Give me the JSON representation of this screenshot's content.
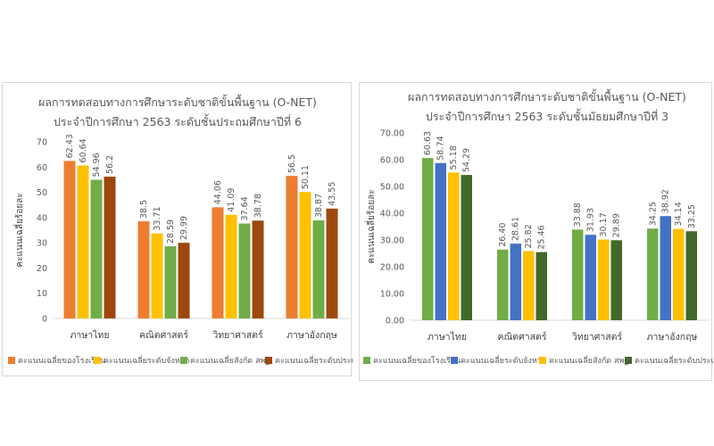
{
  "chart_data": [
    {
      "type": "bar",
      "title": "ผลการทดสอบทางการศึกษาระดับชาติขั้นพื้นฐาน (O-NET)",
      "subtitle": "ประจำปีการศึกษา 2563 ระดับชั้นประถมศึกษาปีที่ 6",
      "xlabel": "",
      "ylabel": "คะแนนเฉลี่ยร้อยละ",
      "ylim": [
        0,
        70
      ],
      "ytick_step": 10,
      "ytick_labels": [
        "0",
        "10",
        "20",
        "30",
        "40",
        "50",
        "60",
        "70"
      ],
      "categories": [
        "ภาษาไทย",
        "คณิตศาสตร์",
        "วิทยาศาสตร์",
        "ภาษาอังกฤษ"
      ],
      "series": [
        {
          "name": "คะแนนเฉลี่ยของโรงเรียน",
          "color": "#ED7D31",
          "values": [
            62.43,
            38.5,
            44.06,
            56.5
          ],
          "labels": [
            "62.43",
            "38.5",
            "44.06",
            "56.5"
          ]
        },
        {
          "name": "คะแนนเฉลี่ยระดับจังหวัด",
          "color": "#FFC000",
          "values": [
            60.64,
            33.71,
            41.09,
            50.11
          ],
          "labels": [
            "60.64",
            "33.71",
            "41.09",
            "50.11"
          ]
        },
        {
          "name": "คะแนนเฉลี่ยสังกัด สพฐ.",
          "color": "#70AD47",
          "values": [
            54.96,
            28.59,
            37.64,
            38.87
          ],
          "labels": [
            "54.96",
            "28.59",
            "37.64",
            "38.87"
          ]
        },
        {
          "name": "คะแนนเฉลี่ยระดับประเทศ",
          "color": "#9E480E",
          "values": [
            56.2,
            29.99,
            38.78,
            43.55
          ],
          "labels": [
            "56.2",
            "29.99",
            "38.78",
            "43.55"
          ]
        }
      ],
      "grid": false,
      "legend_position": "bottom"
    },
    {
      "type": "bar",
      "title": "ผลการทดสอบทางการศึกษาระดับชาติขั้นพื้นฐาน (O-NET)",
      "subtitle": "ประจำปีการศึกษา 2563 ระดับชั้นมัธยมศึกษาปีที่ 3",
      "xlabel": "",
      "ylabel": "คะแนนเฉลี่ยร้อยละ",
      "ylim": [
        0,
        70
      ],
      "ytick_step": 10,
      "ytick_labels": [
        "0.00",
        "10.00",
        "20.00",
        "30.00",
        "40.00",
        "50.00",
        "60.00",
        "70.00"
      ],
      "categories": [
        "ภาษาไทย",
        "คณิตศาสตร์",
        "วิทยาศาสตร์",
        "ภาษาอังกฤษ"
      ],
      "series": [
        {
          "name": "คะแนนเฉลี่ยของโรงเรียน",
          "color": "#70AD47",
          "values": [
            60.63,
            26.4,
            33.88,
            34.25
          ],
          "labels": [
            "60.63",
            "26.40",
            "33.88",
            "34.25"
          ]
        },
        {
          "name": "คะแนนเฉลี่ยระดับจังหวัด",
          "color": "#4472C4",
          "values": [
            58.74,
            28.61,
            31.93,
            38.92
          ],
          "labels": [
            "58.74",
            "28.61",
            "31.93",
            "38.92"
          ]
        },
        {
          "name": "คะแนนเฉลี่ยสังกัด สพฐ.",
          "color": "#FFC000",
          "values": [
            55.18,
            25.82,
            30.17,
            34.14
          ],
          "labels": [
            "55.18",
            "25.82",
            "30.17",
            "34.14"
          ]
        },
        {
          "name": "คะแนนเฉลี่ยระดับประเทศ",
          "color": "#43682B",
          "values": [
            54.29,
            25.46,
            29.89,
            33.25
          ],
          "labels": [
            "54.29",
            "25.46",
            "29.89",
            "33.25"
          ]
        }
      ],
      "grid": false,
      "legend_position": "bottom"
    }
  ]
}
